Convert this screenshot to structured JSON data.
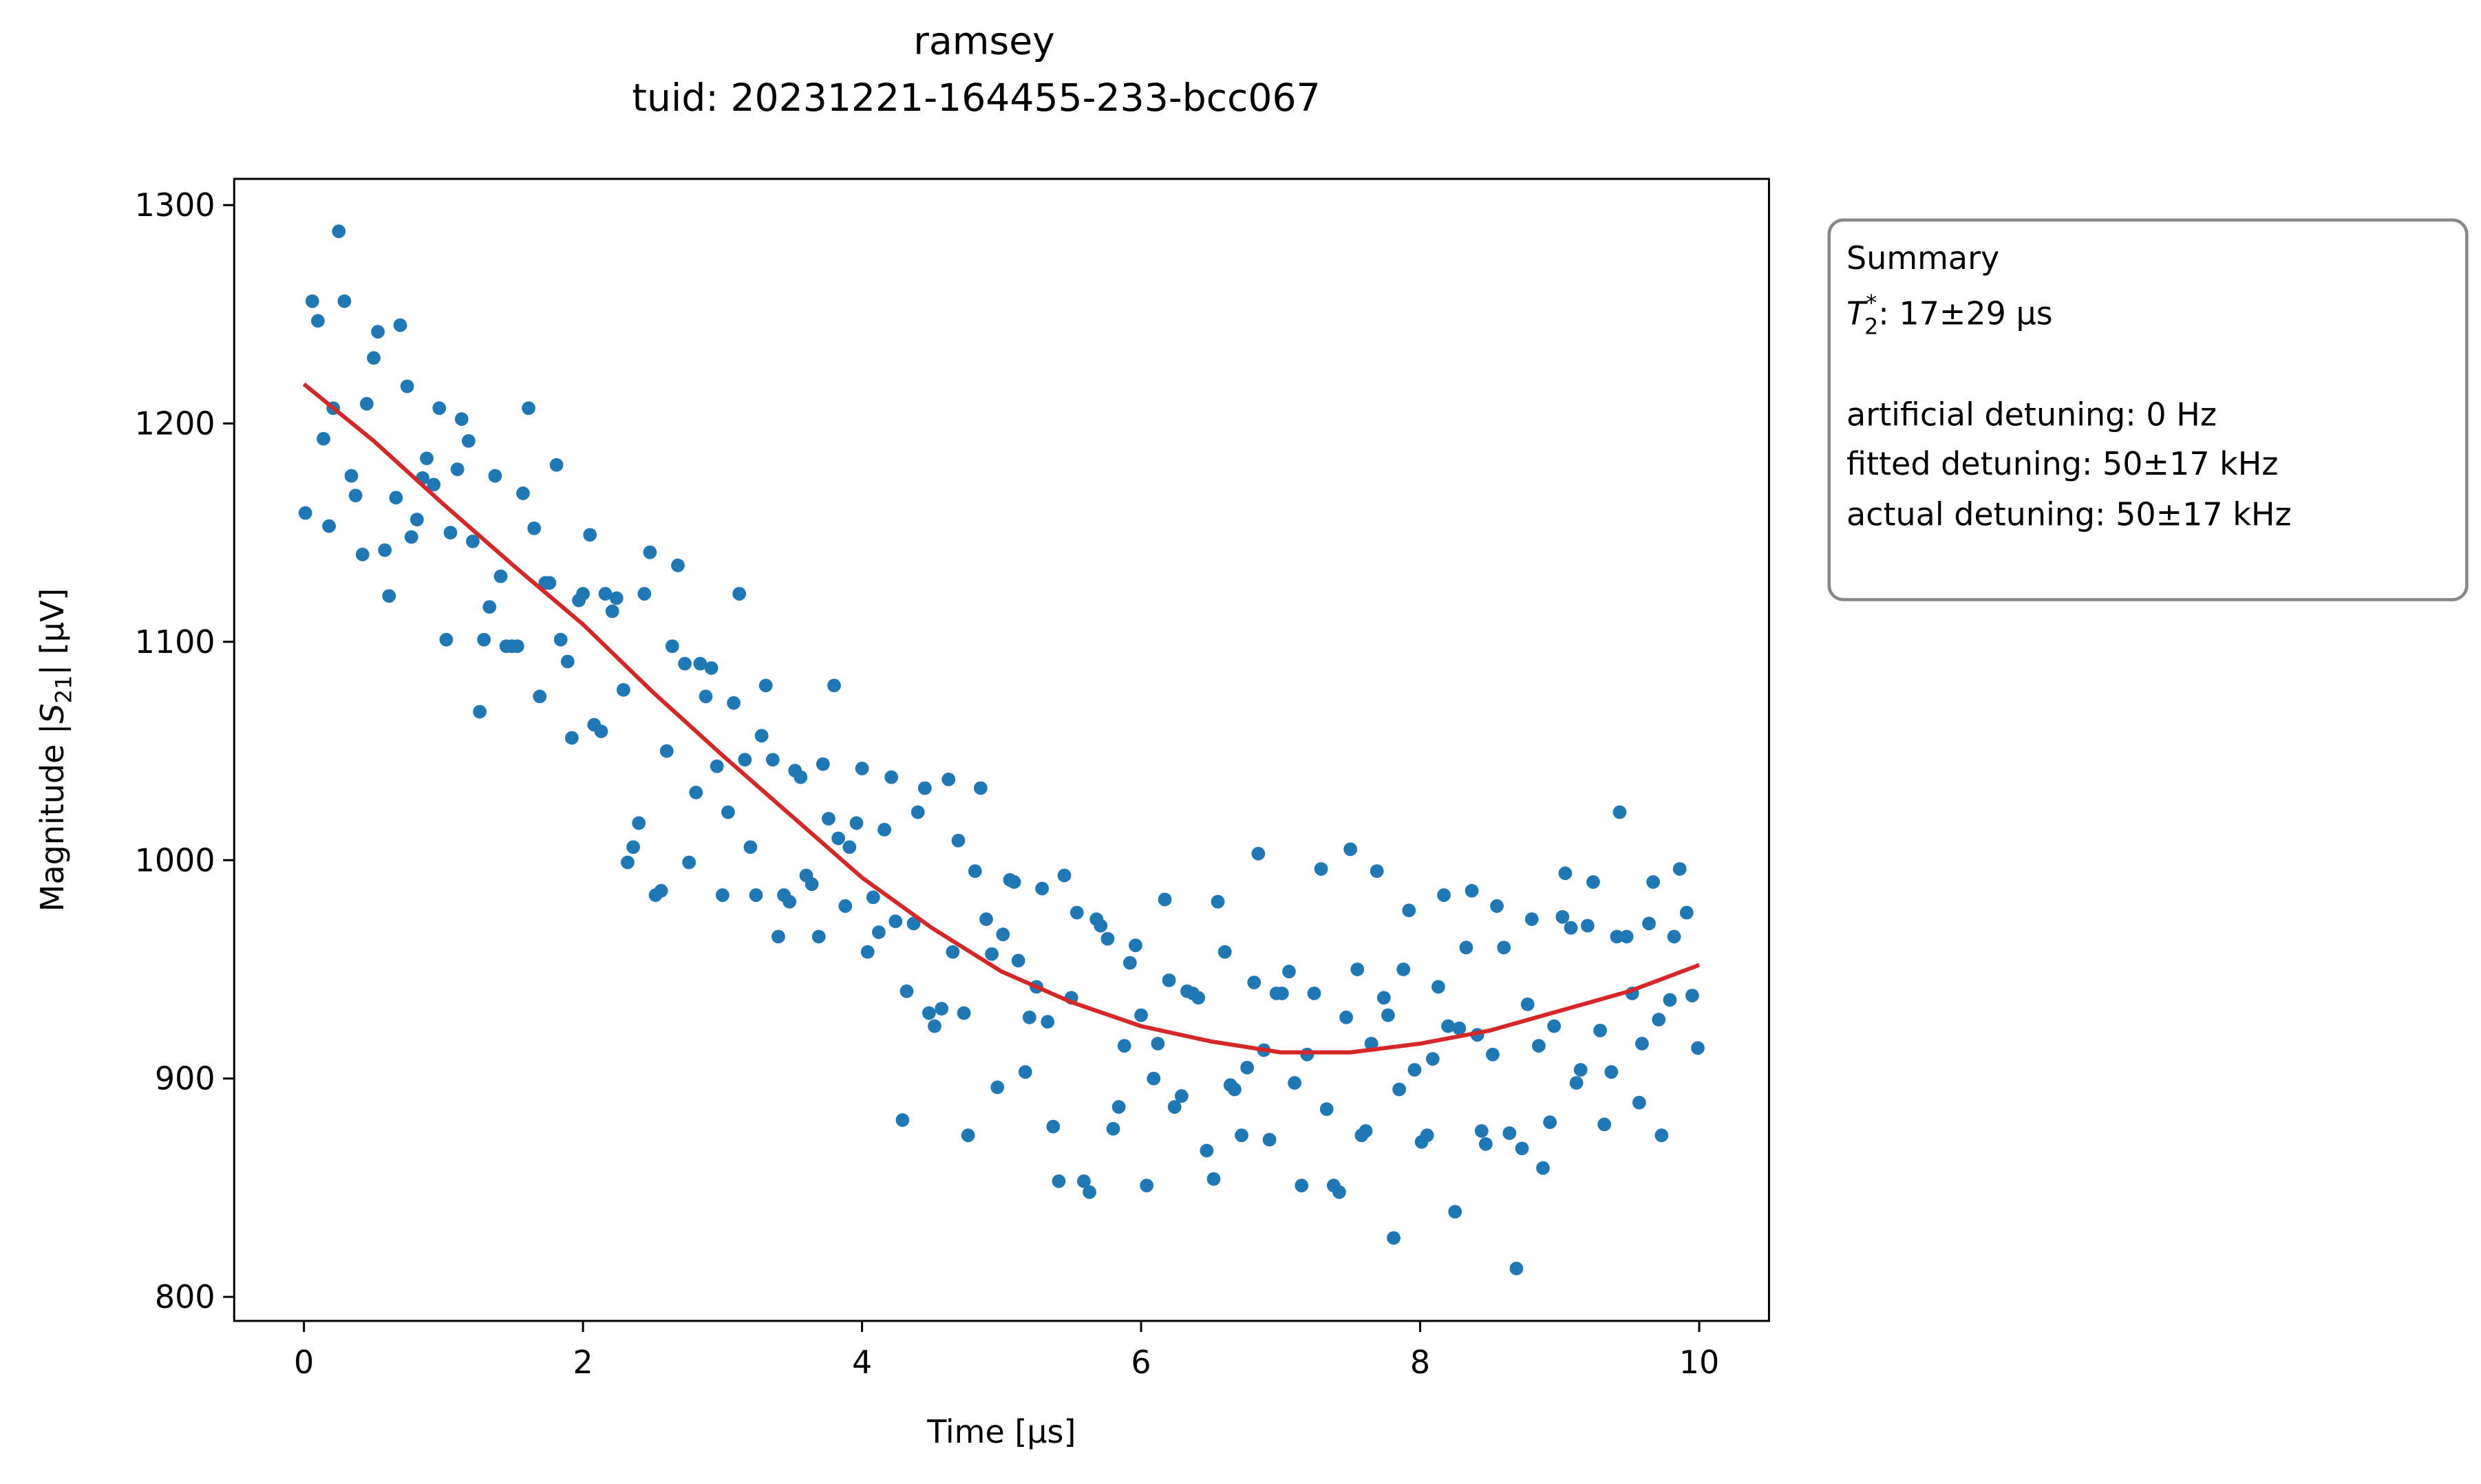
{
  "chart_data": {
    "type": "scatter",
    "title": "ramsey",
    "subtitle": "tuid: 20231221-164455-233-bcc067",
    "xlabel": "Time [µs]",
    "ylabel": {
      "prefix": "Magnitude |",
      "symbol": "S",
      "sub": "21",
      "suffix": "| [µV]"
    },
    "color": "#1f77b4",
    "x": [
      0.01,
      0.06,
      0.1,
      0.14,
      0.18,
      0.21,
      0.25,
      0.29,
      0.34,
      0.37,
      0.42,
      0.45,
      0.5,
      0.53,
      0.58,
      0.61,
      0.66,
      0.69,
      0.74,
      0.77,
      0.81,
      0.85,
      0.88,
      0.93,
      0.97,
      1.02,
      1.05,
      1.1,
      1.13,
      1.18,
      1.21,
      1.26,
      1.29,
      1.33,
      1.37,
      1.41,
      1.45,
      1.49,
      1.53,
      1.57,
      1.61,
      1.65,
      1.69,
      1.73,
      1.76,
      1.81,
      1.84,
      1.89,
      1.92,
      1.97,
      2.0,
      2.05,
      2.08,
      2.13,
      2.16,
      2.21,
      2.24,
      2.29,
      2.32,
      2.36,
      2.4,
      2.44,
      2.48,
      2.52,
      2.56,
      2.6,
      2.64,
      2.68,
      2.73,
      2.76,
      2.81,
      2.84,
      2.88,
      2.92,
      2.96,
      3.0,
      3.04,
      3.08,
      3.12,
      3.16,
      3.2,
      3.24,
      3.28,
      3.31,
      3.36,
      3.4,
      3.44,
      3.48,
      3.52,
      3.56,
      3.6,
      3.64,
      3.69,
      3.72,
      3.76,
      3.8,
      3.83,
      3.88,
      3.91,
      3.96,
      4.0,
      4.04,
      4.08,
      4.12,
      4.16,
      4.21,
      4.24,
      4.29,
      4.32,
      4.37,
      4.4,
      4.45,
      4.48,
      4.52,
      4.57,
      4.62,
      4.65,
      4.69,
      4.73,
      4.76,
      4.81,
      4.85,
      4.89,
      4.93,
      4.97,
      5.01,
      5.06,
      5.09,
      5.12,
      5.17,
      5.2,
      5.25,
      5.29,
      5.33,
      5.37,
      5.41,
      5.45,
      5.5,
      5.54,
      5.59,
      5.63,
      5.68,
      5.71,
      5.76,
      5.8,
      5.84,
      5.88,
      5.92,
      5.96,
      6.0,
      6.04,
      6.09,
      6.12,
      6.17,
      6.2,
      6.24,
      6.29,
      6.33,
      6.37,
      6.41,
      6.47,
      6.52,
      6.55,
      6.6,
      6.64,
      6.67,
      6.72,
      6.76,
      6.81,
      6.84,
      6.88,
      6.92,
      6.97,
      7.01,
      7.06,
      7.1,
      7.15,
      7.19,
      7.24,
      7.29,
      7.33,
      7.38,
      7.42,
      7.47,
      7.5,
      7.55,
      7.58,
      7.61,
      7.65,
      7.69,
      7.74,
      7.77,
      7.81,
      7.85,
      7.88,
      7.92,
      7.96,
      8.01,
      8.05,
      8.09,
      8.13,
      8.17,
      8.2,
      8.25,
      8.28,
      8.33,
      8.37,
      8.41,
      8.44,
      8.47,
      8.52,
      8.55,
      8.6,
      8.64,
      8.69,
      8.73,
      8.77,
      8.8,
      8.85,
      8.88,
      8.93,
      8.96,
      9.02,
      9.04,
      9.08,
      9.12,
      9.15,
      9.2,
      9.24,
      9.29,
      9.32,
      9.37,
      9.41,
      9.43,
      9.48,
      9.52,
      9.57,
      9.59,
      9.64,
      9.67,
      9.71,
      9.73,
      9.79,
      9.82,
      9.86,
      9.91,
      9.95,
      9.99
    ],
    "values": [
      1159,
      1256,
      1247,
      1193,
      1153,
      1207,
      1288,
      1256,
      1176,
      1167,
      1140,
      1209,
      1230,
      1242,
      1142,
      1121,
      1166,
      1245,
      1217,
      1148,
      1156,
      1175,
      1184,
      1172,
      1207,
      1101,
      1150,
      1179,
      1202,
      1192,
      1146,
      1068,
      1101,
      1116,
      1176,
      1130,
      1098,
      1098,
      1098,
      1168,
      1207,
      1152,
      1075,
      1127,
      1127,
      1181,
      1101,
      1091,
      1056,
      1119,
      1122,
      1149,
      1062,
      1059,
      1122,
      1114,
      1120,
      1078,
      999,
      1006,
      1017,
      1122,
      1141,
      984,
      986,
      1050,
      1098,
      1135,
      1090,
      999,
      1031,
      1090,
      1075,
      1088,
      1043,
      984,
      1022,
      1072,
      1122,
      1046,
      1006,
      984,
      1057,
      1080,
      1046,
      965,
      984,
      981,
      1041,
      1038,
      993,
      989,
      965,
      1044,
      1019,
      1080,
      1010,
      979,
      1006,
      1017,
      1042,
      958,
      983,
      967,
      1014,
      1038,
      972,
      881,
      940,
      971,
      1022,
      1033,
      930,
      924,
      932,
      1037,
      958,
      1009,
      930,
      874,
      995,
      1033,
      973,
      957,
      896,
      966,
      991,
      990,
      954,
      903,
      928,
      942,
      987,
      926,
      878,
      853,
      993,
      937,
      976,
      853,
      848,
      973,
      970,
      964,
      877,
      887,
      915,
      953,
      961,
      929,
      851,
      900,
      916,
      982,
      945,
      887,
      892,
      940,
      939,
      937,
      867,
      854,
      981,
      958,
      897,
      895,
      874,
      905,
      944,
      1003,
      913,
      872,
      939,
      939,
      949,
      898,
      851,
      911,
      939,
      996,
      886,
      851,
      848,
      928,
      1005,
      950,
      874,
      876,
      916,
      995,
      937,
      929,
      827,
      895,
      950,
      977,
      904,
      871,
      874,
      909,
      942,
      984,
      924,
      839,
      923,
      960,
      986,
      920,
      876,
      870,
      911,
      979,
      960,
      875,
      813,
      868,
      934,
      973,
      915,
      859,
      880,
      924,
      974,
      994,
      969,
      898,
      904,
      970,
      990,
      922,
      879,
      903,
      965,
      1022,
      965,
      939,
      889,
      916,
      971,
      990,
      927,
      874,
      936,
      965,
      996,
      976,
      938,
      914
    ],
    "fit": {
      "color": "#d62728",
      "x": [
        0,
        0.5,
        1,
        1.5,
        2,
        2.5,
        3,
        3.5,
        4,
        4.5,
        5,
        5.5,
        6,
        6.5,
        7,
        7.5,
        8,
        8.5,
        9,
        9.5,
        10
      ],
      "values": [
        1218,
        1192,
        1163,
        1135,
        1108,
        1077,
        1048,
        1020,
        992,
        969,
        949,
        935,
        924,
        917,
        912,
        912,
        916,
        922,
        931,
        940,
        952
      ]
    },
    "xlim": [
      -0.5,
      10.5
    ],
    "xticks": [
      0,
      2,
      4,
      6,
      8,
      10
    ],
    "ylim": [
      789,
      1312
    ],
    "yticks": [
      800,
      900,
      1000,
      1100,
      1200,
      1300
    ],
    "summary": {
      "title": "Summary",
      "t2_symbol": "T",
      "t2_sub": "2",
      "t2_sup": "*",
      "t2_value": ": 17±29 µs",
      "lines": [
        "artificial detuning: 0 Hz",
        "fitted detuning: 50±17 kHz",
        "actual detuning: 50±17 kHz"
      ]
    }
  }
}
